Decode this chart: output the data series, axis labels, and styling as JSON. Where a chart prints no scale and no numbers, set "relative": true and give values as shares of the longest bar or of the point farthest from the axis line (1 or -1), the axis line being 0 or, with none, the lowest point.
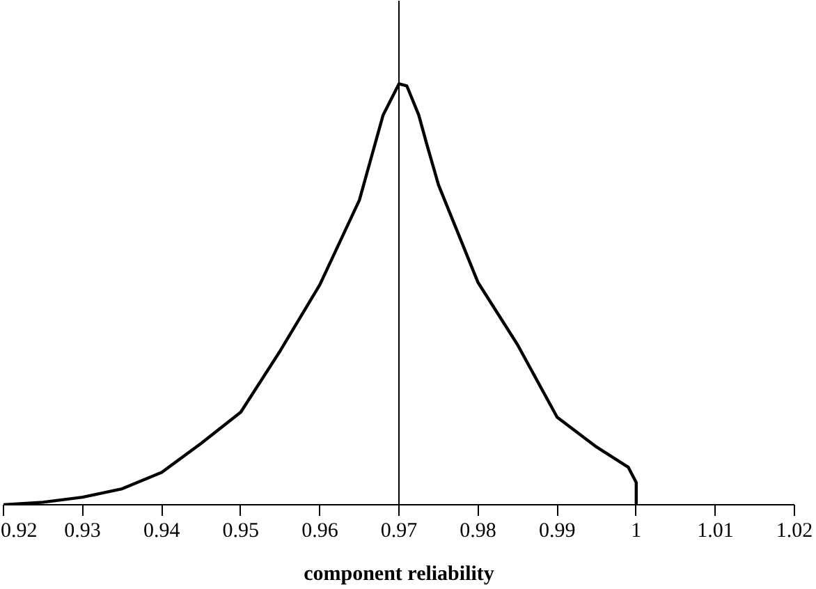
{
  "chart_data": {
    "type": "line",
    "relative": true,
    "xlabel": "component reliability",
    "xlim": [
      0.92,
      1.02
    ],
    "xticks": [
      0.92,
      0.93,
      0.94,
      0.95,
      0.96,
      0.97,
      0.98,
      0.99,
      1,
      1.01,
      1.02
    ],
    "grid": false,
    "marker": "none",
    "line_style": "solid",
    "series": [
      {
        "color": "#000000",
        "x": [
          0.92,
          0.925,
          0.93,
          0.935,
          0.94,
          0.945,
          0.95,
          0.955,
          0.96,
          0.965,
          0.9665,
          0.968,
          0.97,
          0.971,
          0.9725,
          0.9735,
          0.975,
          0.98,
          0.985,
          0.99,
          0.995,
          0.999,
          1.0,
          1.0
        ],
        "values": [
          0,
          0.006,
          0.018,
          0.038,
          0.077,
          0.146,
          0.22,
          0.366,
          0.523,
          0.724,
          0.825,
          0.926,
          1.0,
          0.995,
          0.926,
          0.858,
          0.76,
          0.528,
          0.38,
          0.208,
          0.137,
          0.089,
          0.053,
          0
        ]
      }
    ],
    "ref_lines": [
      {
        "axis": "x",
        "value": 0.97,
        "color": "#000000"
      }
    ]
  }
}
